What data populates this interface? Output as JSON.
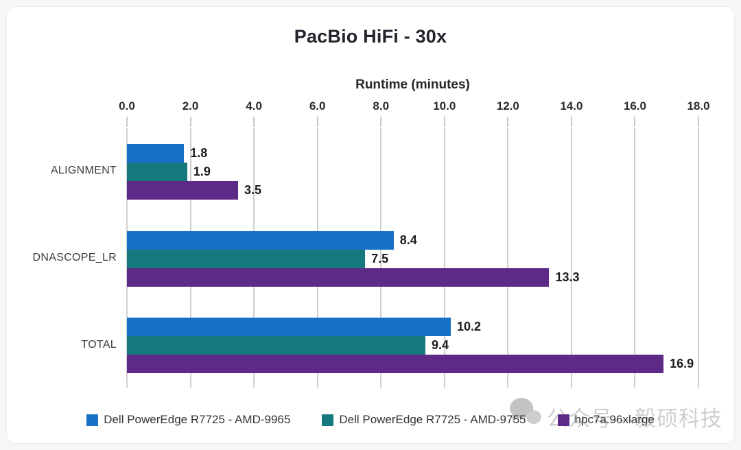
{
  "chart_data": {
    "type": "bar",
    "orientation": "horizontal",
    "title": "PacBio HiFi - 30x",
    "xlabel": "Runtime (minutes)",
    "ylabel": "",
    "categories": [
      "ALIGNMENT",
      "DNASCOPE_LR",
      "TOTAL"
    ],
    "series": [
      {
        "name": "Dell PowerEdge R7725 - AMD-9965",
        "color": "#1572C4",
        "values": [
          1.8,
          8.4,
          10.2
        ]
      },
      {
        "name": "Dell PowerEdge R7725 - AMD-9755",
        "color": "#15797D",
        "values": [
          1.9,
          7.5,
          9.4
        ]
      },
      {
        "name": "hpc7a.96xlarge",
        "color": "#5D2B87",
        "values": [
          3.5,
          13.3,
          16.9
        ]
      }
    ],
    "xlim": [
      0.0,
      18.0
    ],
    "xticks": [
      "0.0",
      "2.0",
      "4.0",
      "6.0",
      "8.0",
      "10.0",
      "12.0",
      "14.0",
      "16.0",
      "18.0"
    ],
    "grid": true,
    "legend_position": "bottom",
    "data_labels": true
  },
  "watermark": {
    "icon": "chat-bubbles-icon",
    "text": "公众号—毅硕科技"
  },
  "style_colors": {
    "gridline": "#cfcfcf",
    "title_text": "#22222b",
    "axis_text": "#2a2a2a",
    "watermark_gray": "#c3c3c3"
  }
}
